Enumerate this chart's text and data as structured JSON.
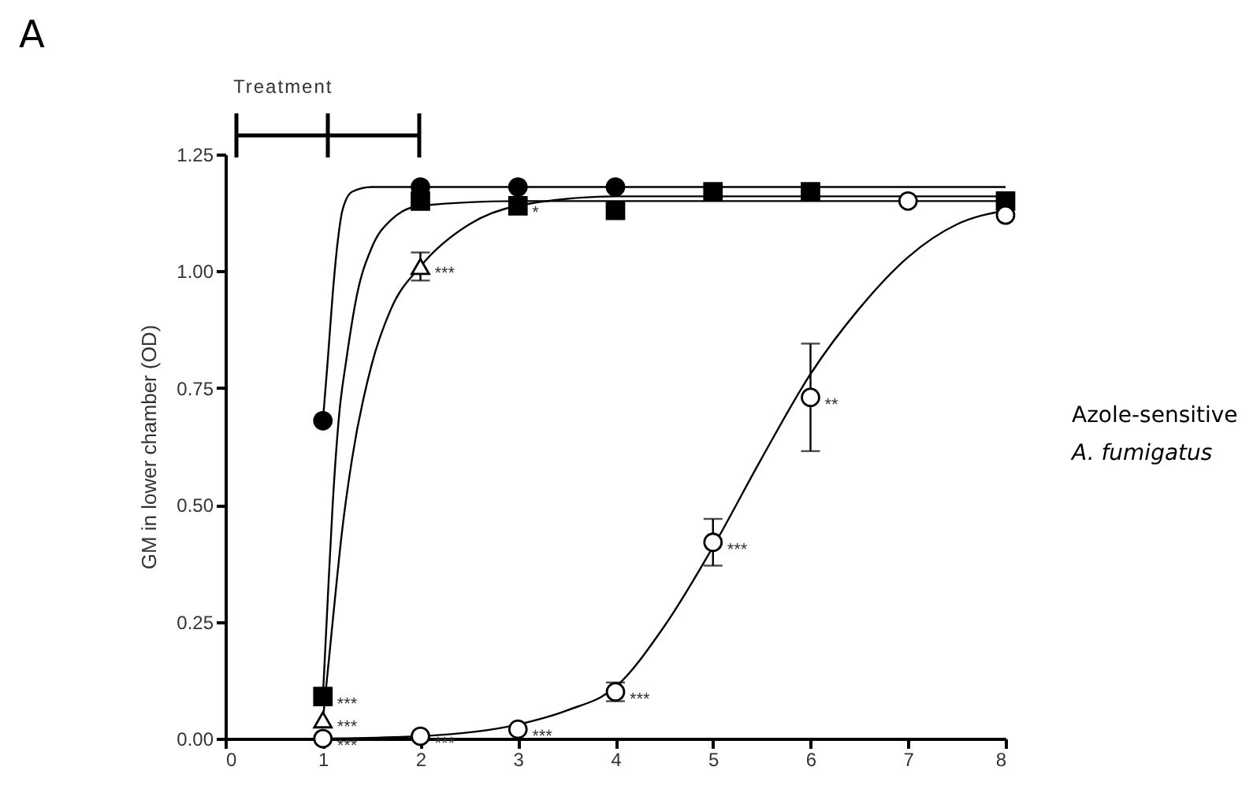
{
  "chart_data": {
    "type": "scatter",
    "ylabel": "GM in lower chamber (OD)",
    "xlim": [
      0,
      8
    ],
    "xticks": [
      0,
      1,
      2,
      3,
      4,
      5,
      6,
      7,
      8
    ],
    "ylim": [
      0,
      1.25
    ],
    "yticks": [
      {
        "value": 0,
        "label": "0.00"
      },
      {
        "value": 0.25,
        "label": "0.25"
      },
      {
        "value": 0.5,
        "label": "0.50"
      },
      {
        "value": 0.75,
        "label": "0.75"
      },
      {
        "value": 1,
        "label": "1.00"
      },
      {
        "value": 1.25,
        "label": "1.25"
      }
    ],
    "grid": false,
    "series": [
      {
        "type": "line",
        "color": "#000000",
        "x": [
          1,
          1.05,
          1.1,
          1.15,
          1.2,
          1.3,
          1.5,
          2,
          8
        ],
        "values": [
          0.68,
          0.81,
          0.95,
          1.06,
          1.13,
          1.17,
          1.18,
          1.18,
          1.18
        ]
      },
      {
        "type": "line",
        "color": "#000000",
        "x": [
          1,
          1.05,
          1.1,
          1.17,
          1.24,
          1.35,
          1.5,
          1.7,
          2,
          3,
          8
        ],
        "values": [
          0.09,
          0.3,
          0.5,
          0.7,
          0.81,
          0.95,
          1.05,
          1.11,
          1.14,
          1.15,
          1.15
        ]
      },
      {
        "type": "line",
        "color": "#000000",
        "x": [
          1,
          1.1,
          1.2,
          1.3,
          1.5,
          1.7,
          2,
          2.5,
          3,
          4,
          8
        ],
        "values": [
          0.04,
          0.25,
          0.45,
          0.6,
          0.8,
          0.92,
          1.01,
          1.1,
          1.14,
          1.16,
          1.16
        ]
      },
      {
        "type": "line",
        "color": "#000000",
        "x": [
          1,
          2,
          3,
          3.5,
          4,
          4.5,
          5,
          5.5,
          6,
          6.5,
          7,
          7.5,
          8
        ],
        "values": [
          0,
          0.005,
          0.03,
          0.06,
          0.11,
          0.24,
          0.41,
          0.6,
          0.78,
          0.92,
          1.03,
          1.1,
          1.13
        ]
      },
      {
        "marker": "circle",
        "color": "#000000",
        "x": [
          1,
          2,
          3,
          4
        ],
        "values": [
          0.68,
          1.18,
          1.18,
          1.18
        ]
      },
      {
        "marker": "square",
        "color": "#000000",
        "x": [
          1,
          2,
          3,
          4,
          5,
          6,
          7,
          8
        ],
        "values": [
          0.09,
          1.15,
          1.14,
          1.13,
          1.17,
          1.17,
          null,
          1.15
        ]
      },
      {
        "marker": "triangle",
        "color": "#ffffff",
        "x": [
          1,
          2
        ],
        "values": [
          0.04,
          1.01
        ],
        "errors": [
          null,
          0.03
        ]
      },
      {
        "marker": "circle",
        "color": "#ffffff",
        "x": [
          1,
          2,
          3,
          4,
          5,
          6,
          7,
          8
        ],
        "values": [
          0,
          0.005,
          0.02,
          0.1,
          0.42,
          0.73,
          1.15,
          1.12
        ],
        "errors": [
          null,
          null,
          null,
          0.02,
          0.05,
          0.115,
          null,
          null
        ]
      }
    ],
    "annotations": [
      "A",
      "Treatment",
      "Azole-sensitive",
      "A. fumigatus",
      {
        "text": "***",
        "x": 2,
        "y": 1.01
      },
      {
        "text": "*",
        "x": 3,
        "y": 1.14
      },
      {
        "text": "***",
        "x": 1,
        "y": 0.09
      },
      {
        "text": "***",
        "x": 1,
        "y": 0.04
      },
      {
        "text": "***",
        "x": 1,
        "y": 0
      },
      {
        "text": "***",
        "x": 2,
        "y": 0.005
      },
      {
        "text": "***",
        "x": 3,
        "y": 0.02
      },
      {
        "text": "***",
        "x": 4,
        "y": 0.1
      },
      {
        "text": "***",
        "x": 5,
        "y": 0.42
      },
      {
        "text": "**",
        "x": 6,
        "y": 0.73
      }
    ]
  }
}
